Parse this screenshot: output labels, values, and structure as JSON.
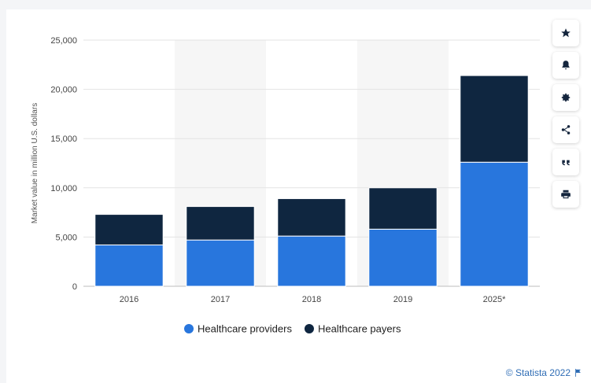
{
  "chart_data": {
    "type": "bar",
    "stacked": true,
    "categories": [
      "2016",
      "2017",
      "2018",
      "2019",
      "2025*"
    ],
    "series": [
      {
        "name": "Healthcare providers",
        "values": [
          4200,
          4700,
          5100,
          5800,
          12600
        ],
        "color": "#2876dd"
      },
      {
        "name": "Healthcare payers",
        "values": [
          3100,
          3400,
          3800,
          4200,
          8800
        ],
        "color": "#0f2640"
      }
    ],
    "title": "",
    "xlabel": "",
    "ylabel": "Market value in million U.S. dollars",
    "ylim": [
      0,
      25000
    ],
    "yticks": [
      0,
      5000,
      10000,
      15000,
      20000,
      25000
    ],
    "ytick_labels": [
      "0",
      "5,000",
      "10,000",
      "15,000",
      "20,000",
      "25,000"
    ],
    "grid": true,
    "legend_position": "bottom"
  },
  "toolbar": {
    "buttons": [
      {
        "name": "favorite",
        "icon": "star-icon"
      },
      {
        "name": "notification",
        "icon": "bell-icon"
      },
      {
        "name": "settings",
        "icon": "gear-icon"
      },
      {
        "name": "share",
        "icon": "share-icon"
      },
      {
        "name": "cite",
        "icon": "quote-icon"
      },
      {
        "name": "print",
        "icon": "print-icon"
      }
    ]
  },
  "credit": {
    "text": "© Statista 2022"
  }
}
